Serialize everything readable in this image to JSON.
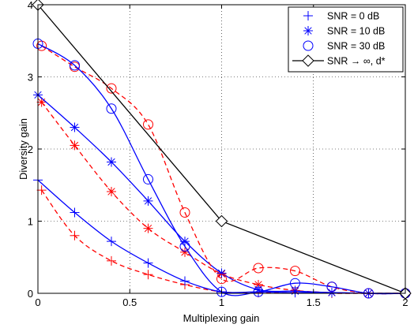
{
  "chart_data": {
    "type": "line",
    "xlabel": "Multiplexing gain",
    "ylabel": "Diversity gain",
    "xlim": [
      0,
      2
    ],
    "ylim": [
      0,
      4
    ],
    "xticks": [
      "0",
      "0.5",
      "1",
      "1.5",
      "2"
    ],
    "yticks": [
      "0",
      "1",
      "2",
      "3",
      "4"
    ],
    "grid": true,
    "legend_position": "top-right",
    "legend": [
      "SNR = 0 dB",
      "SNR = 10 dB",
      "SNR = 30 dB",
      "SNR → ∞, d*"
    ],
    "colors": {
      "blue": "#0000ff",
      "red": "#ff0000",
      "black": "#000000"
    },
    "series": [
      {
        "name": "SNR = 0 dB",
        "marker": "plus",
        "solid": {
          "color": "#0000ff",
          "x": [
            0,
            0.2,
            0.4,
            0.6,
            0.8,
            1.0,
            1.2,
            1.4,
            1.6,
            1.8,
            2.0
          ],
          "y": [
            1.57,
            1.12,
            0.72,
            0.42,
            0.17,
            0.02,
            0.02,
            0.01,
            0.01,
            0.0,
            0.0
          ]
        },
        "dashed": {
          "color": "#ff0000",
          "x": [
            0.02,
            0.2,
            0.4,
            0.6,
            0.8,
            1.0,
            1.2,
            1.4,
            1.6,
            1.8,
            2.0
          ],
          "y": [
            1.43,
            0.8,
            0.45,
            0.26,
            0.12,
            0.02,
            0.01,
            0.01,
            0.0,
            0.0,
            0.0
          ]
        }
      },
      {
        "name": "SNR = 10 dB",
        "marker": "star",
        "solid": {
          "color": "#0000ff",
          "x": [
            0,
            0.2,
            0.4,
            0.6,
            0.8,
            1.0,
            1.2,
            1.4,
            1.6,
            1.8,
            2.0
          ],
          "y": [
            2.75,
            2.3,
            1.82,
            1.28,
            0.72,
            0.28,
            0.05,
            0.03,
            0.01,
            0.0,
            0.0
          ]
        },
        "dashed": {
          "color": "#ff0000",
          "x": [
            0.02,
            0.2,
            0.4,
            0.6,
            0.8,
            1.0,
            1.2,
            1.4,
            1.6,
            1.8,
            2.0
          ],
          "y": [
            2.65,
            2.05,
            1.41,
            0.9,
            0.57,
            0.27,
            0.12,
            0.04,
            0.01,
            0.0,
            0.0
          ]
        }
      },
      {
        "name": "SNR = 30 dB",
        "marker": "circle",
        "solid": {
          "color": "#0000ff",
          "x": [
            0,
            0.2,
            0.4,
            0.6,
            0.8,
            1.0,
            1.2,
            1.4,
            1.6,
            1.8,
            2.0
          ],
          "y": [
            3.46,
            3.16,
            2.56,
            1.58,
            0.65,
            0.02,
            0.02,
            0.14,
            0.09,
            0.0,
            0.0
          ]
        },
        "dashed": {
          "color": "#ff0000",
          "x": [
            0.02,
            0.2,
            0.4,
            0.6,
            0.8,
            1.0,
            1.2,
            1.4,
            1.6,
            1.8,
            2.0
          ],
          "y": [
            3.43,
            3.14,
            2.84,
            2.34,
            1.12,
            0.2,
            0.35,
            0.31,
            0.09,
            0.0,
            0.0
          ]
        }
      },
      {
        "name": "SNR → ∞, d*",
        "marker": "diamond",
        "solid": {
          "color": "#000000",
          "x": [
            0,
            1,
            2
          ],
          "y": [
            4,
            1,
            0
          ]
        }
      }
    ]
  }
}
